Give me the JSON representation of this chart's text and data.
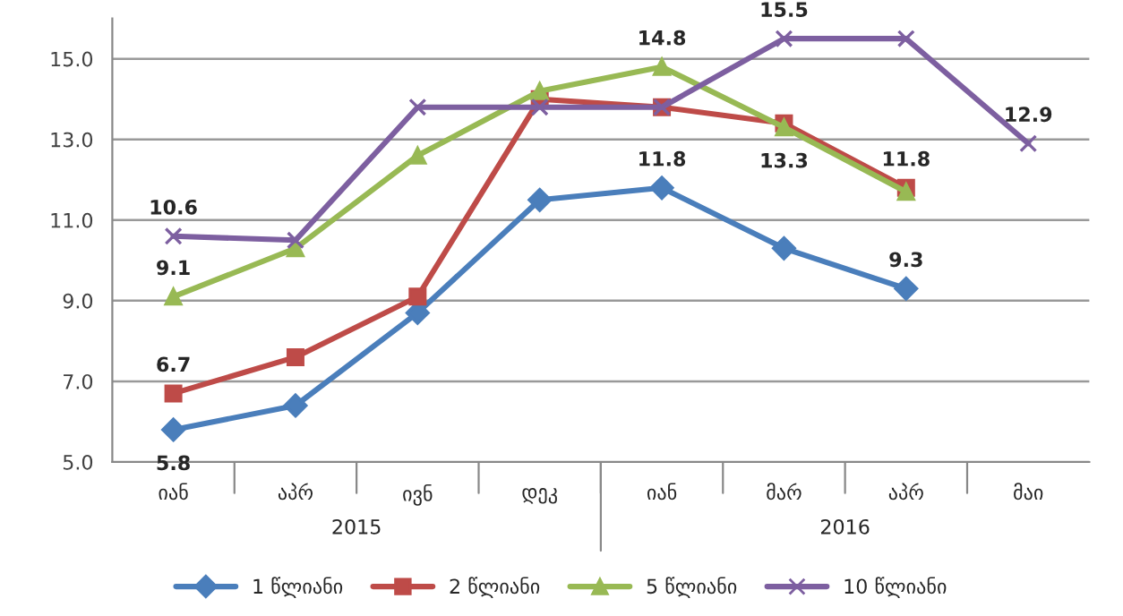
{
  "chart_data": {
    "type": "line",
    "categories": [
      "იან",
      "აპრ",
      "ივნ",
      "დეკ",
      "იან",
      "მარ",
      "აპრ",
      "მაი"
    ],
    "annotations": [
      "2015",
      "2016"
    ],
    "series": [
      {
        "name": "1 წლიანი",
        "color": "#4a7ebb",
        "marker": "diamond",
        "values": [
          5.8,
          6.4,
          8.7,
          11.5,
          11.8,
          10.3,
          9.3,
          null
        ],
        "value_labels": [
          "5.8",
          null,
          null,
          null,
          "11.8",
          null,
          "9.3",
          null
        ]
      },
      {
        "name": "2 წლიანი",
        "color": "#be4b48",
        "marker": "square",
        "values": [
          6.7,
          7.6,
          9.1,
          14.0,
          13.8,
          13.4,
          11.8,
          null
        ],
        "value_labels": [
          "6.7",
          null,
          null,
          null,
          null,
          null,
          "11.8",
          null
        ]
      },
      {
        "name": "5 წლიანი",
        "color": "#98b954",
        "marker": "triangle",
        "values": [
          9.1,
          10.3,
          12.6,
          14.2,
          14.8,
          13.3,
          11.7,
          null
        ],
        "value_labels": [
          "9.1",
          null,
          null,
          null,
          "14.8",
          "13.3",
          null,
          null
        ]
      },
      {
        "name": "10 წლიანი",
        "color": "#7d5fa0",
        "marker": "cross",
        "values": [
          10.6,
          10.5,
          13.8,
          13.8,
          13.8,
          15.5,
          15.5,
          12.9
        ],
        "value_labels": [
          "10.6",
          null,
          null,
          null,
          null,
          "15.5",
          null,
          "12.9"
        ]
      }
    ],
    "ylim": [
      5,
      16
    ],
    "yticks": [
      {
        "value": 5,
        "label": "5.0"
      },
      {
        "value": 7,
        "label": "7.0"
      },
      {
        "value": 9,
        "label": "9.0"
      },
      {
        "value": 11,
        "label": "11.0"
      },
      {
        "value": 13,
        "label": "13.0"
      },
      {
        "value": 15,
        "label": "15.0"
      }
    ],
    "grid": "y",
    "legend": "bottom"
  }
}
